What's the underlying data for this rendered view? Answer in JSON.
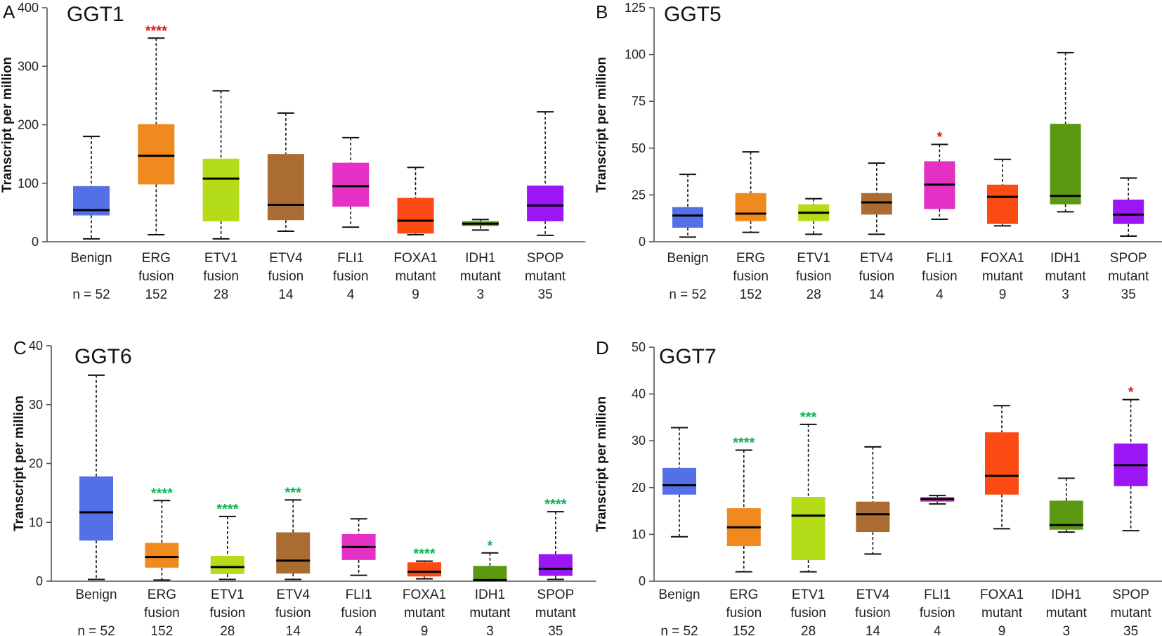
{
  "colors": {
    "Benign": "#5470E6",
    "ERG fusion": "#F08A1E",
    "ETV1 fusion": "#B5DC18",
    "ETV4 fusion": "#AA6C33",
    "FLI1 fusion": "#E430C4",
    "FOXA1 mutant": "#FB4A12",
    "IDH1 mutant": "#5C9913",
    "SPOP mutant": "#9A16F5",
    "star_red": "#E01818",
    "star_green": "#14B455"
  },
  "chart_data": [
    {
      "type": "boxplot",
      "panel": "A",
      "title": "GGT1",
      "ylabel": "Transcript per million",
      "ylim": [
        0,
        400
      ],
      "yticks": [
        0,
        100,
        200,
        300,
        400
      ],
      "categories": [
        {
          "name": "Benign",
          "line1": "Benign",
          "line2": "",
          "n": "n = 52",
          "min": 5,
          "q1": 45,
          "median": 54,
          "q3": 95,
          "max": 180,
          "stars": "",
          "star_color": ""
        },
        {
          "name": "ERG fusion",
          "line1": "ERG",
          "line2": "fusion",
          "n": "152",
          "min": 12,
          "q1": 98,
          "median": 147,
          "q3": 201,
          "max": 348,
          "stars": "****",
          "star_color": "red"
        },
        {
          "name": "ETV1 fusion",
          "line1": "ETV1",
          "line2": "fusion",
          "n": "28",
          "min": 5,
          "q1": 35,
          "median": 108,
          "q3": 142,
          "max": 258,
          "stars": "",
          "star_color": ""
        },
        {
          "name": "ETV4 fusion",
          "line1": "ETV4",
          "line2": "fusion",
          "n": "14",
          "min": 18,
          "q1": 37,
          "median": 63,
          "q3": 150,
          "max": 220,
          "stars": "",
          "star_color": ""
        },
        {
          "name": "FLI1 fusion",
          "line1": "FLI1",
          "line2": "fusion",
          "n": "4",
          "min": 25,
          "q1": 60,
          "median": 95,
          "q3": 135,
          "max": 178,
          "stars": "",
          "star_color": ""
        },
        {
          "name": "FOXA1 mutant",
          "line1": "FOXA1",
          "line2": "mutant",
          "n": "9",
          "min": 12,
          "q1": 14,
          "median": 36,
          "q3": 75,
          "max": 127,
          "stars": "",
          "star_color": ""
        },
        {
          "name": "IDH1 mutant",
          "line1": "IDH1",
          "line2": "mutant",
          "n": "3",
          "min": 20,
          "q1": 27,
          "median": 31,
          "q3": 35,
          "max": 38,
          "stars": "",
          "star_color": ""
        },
        {
          "name": "SPOP mutant",
          "line1": "SPOP",
          "line2": "mutant",
          "n": "35",
          "min": 11,
          "q1": 35,
          "median": 62,
          "q3": 96,
          "max": 222,
          "stars": "",
          "star_color": ""
        }
      ]
    },
    {
      "type": "boxplot",
      "panel": "B",
      "title": "GGT5",
      "ylabel": "Transcript per million",
      "ylim": [
        0,
        125
      ],
      "yticks": [
        0,
        25,
        50,
        75,
        100,
        125
      ],
      "categories": [
        {
          "name": "Benign",
          "line1": "Benign",
          "line2": "",
          "n": "n = 52",
          "min": 2.5,
          "q1": 7.5,
          "median": 14,
          "q3": 18.5,
          "max": 36,
          "stars": "",
          "star_color": ""
        },
        {
          "name": "ERG fusion",
          "line1": "ERG",
          "line2": "fusion",
          "n": "152",
          "min": 5,
          "q1": 11,
          "median": 15,
          "q3": 26,
          "max": 48,
          "stars": "",
          "star_color": ""
        },
        {
          "name": "ETV1 fusion",
          "line1": "ETV1",
          "line2": "fusion",
          "n": "28",
          "min": 4,
          "q1": 11,
          "median": 15.5,
          "q3": 20,
          "max": 23,
          "stars": "",
          "star_color": ""
        },
        {
          "name": "ETV4 fusion",
          "line1": "ETV4",
          "line2": "fusion",
          "n": "14",
          "min": 4,
          "q1": 14.5,
          "median": 21,
          "q3": 26,
          "max": 42,
          "stars": "",
          "star_color": ""
        },
        {
          "name": "FLI1 fusion",
          "line1": "FLI1",
          "line2": "fusion",
          "n": "4",
          "min": 12,
          "q1": 17.5,
          "median": 30.5,
          "q3": 43,
          "max": 52,
          "stars": "*",
          "star_color": "red"
        },
        {
          "name": "FOXA1 mutant",
          "line1": "FOXA1",
          "line2": "mutant",
          "n": "9",
          "min": 8.5,
          "q1": 9.5,
          "median": 24,
          "q3": 30.5,
          "max": 44,
          "stars": "",
          "star_color": ""
        },
        {
          "name": "IDH1 mutant",
          "line1": "IDH1",
          "line2": "mutant",
          "n": "3",
          "min": 16,
          "q1": 20,
          "median": 24.5,
          "q3": 63,
          "max": 101,
          "stars": "",
          "star_color": ""
        },
        {
          "name": "SPOP mutant",
          "line1": "SPOP",
          "line2": "mutant",
          "n": "35",
          "min": 3,
          "q1": 9.5,
          "median": 14.5,
          "q3": 22.5,
          "max": 34,
          "stars": "",
          "star_color": ""
        }
      ]
    },
    {
      "type": "boxplot",
      "panel": "C",
      "title": "GGT6",
      "ylabel": "Transcript per million",
      "ylim": [
        0,
        40
      ],
      "yticks": [
        0,
        10,
        20,
        30,
        40
      ],
      "categories": [
        {
          "name": "Benign",
          "line1": "Benign",
          "line2": "",
          "n": "n = 52",
          "min": 0.3,
          "q1": 6.9,
          "median": 11.7,
          "q3": 17.8,
          "max": 35,
          "stars": "",
          "star_color": ""
        },
        {
          "name": "ERG fusion",
          "line1": "ERG",
          "line2": "fusion",
          "n": "152",
          "min": 0.2,
          "q1": 2.3,
          "median": 4.1,
          "q3": 6.5,
          "max": 13.7,
          "stars": "****",
          "star_color": "green"
        },
        {
          "name": "ETV1 fusion",
          "line1": "ETV1",
          "line2": "fusion",
          "n": "28",
          "min": 0.3,
          "q1": 1.2,
          "median": 2.4,
          "q3": 4.3,
          "max": 11,
          "stars": "****",
          "star_color": "green"
        },
        {
          "name": "ETV4 fusion",
          "line1": "ETV4",
          "line2": "fusion",
          "n": "14",
          "min": 0.3,
          "q1": 1.3,
          "median": 3.5,
          "q3": 8.3,
          "max": 13.8,
          "stars": "***",
          "star_color": "green"
        },
        {
          "name": "FLI1 fusion",
          "line1": "FLI1",
          "line2": "fusion",
          "n": "4",
          "min": 1,
          "q1": 3.6,
          "median": 5.8,
          "q3": 8,
          "max": 10.6,
          "stars": "",
          "star_color": ""
        },
        {
          "name": "FOXA1 mutant",
          "line1": "FOXA1",
          "line2": "mutant",
          "n": "9",
          "min": 0.4,
          "q1": 0.8,
          "median": 1.6,
          "q3": 3.2,
          "max": 3.4,
          "stars": "****",
          "star_color": "green"
        },
        {
          "name": "IDH1 mutant",
          "line1": "IDH1",
          "line2": "mutant",
          "n": "3",
          "min": 0.1,
          "q1": 0.1,
          "median": 0.2,
          "q3": 2.6,
          "max": 4.8,
          "stars": "*",
          "star_color": "green"
        },
        {
          "name": "SPOP mutant",
          "line1": "SPOP",
          "line2": "mutant",
          "n": "35",
          "min": 0.3,
          "q1": 0.9,
          "median": 2.1,
          "q3": 4.6,
          "max": 11.8,
          "stars": "****",
          "star_color": "green"
        }
      ]
    },
    {
      "type": "boxplot",
      "panel": "D",
      "title": "GGT7",
      "ylabel": "Transcript per million",
      "ylim": [
        0,
        50
      ],
      "yticks": [
        0,
        10,
        20,
        30,
        40,
        50
      ],
      "categories": [
        {
          "name": "Benign",
          "line1": "Benign",
          "line2": "",
          "n": "n = 52",
          "min": 9.5,
          "q1": 18.5,
          "median": 20.5,
          "q3": 24.2,
          "max": 32.8,
          "stars": "",
          "star_color": ""
        },
        {
          "name": "ERG fusion",
          "line1": "ERG",
          "line2": "fusion",
          "n": "152",
          "min": 2,
          "q1": 7.5,
          "median": 11.5,
          "q3": 15.6,
          "max": 28,
          "stars": "****",
          "star_color": "green"
        },
        {
          "name": "ETV1 fusion",
          "line1": "ETV1",
          "line2": "fusion",
          "n": "28",
          "min": 2,
          "q1": 4.5,
          "median": 14,
          "q3": 18,
          "max": 33.5,
          "stars": "***",
          "star_color": "green"
        },
        {
          "name": "ETV4 fusion",
          "line1": "ETV4",
          "line2": "fusion",
          "n": "14",
          "min": 5.8,
          "q1": 10.5,
          "median": 14.3,
          "q3": 17,
          "max": 28.7,
          "stars": "",
          "star_color": ""
        },
        {
          "name": "FLI1 fusion",
          "line1": "FLI1",
          "line2": "fusion",
          "n": "4",
          "min": 16.5,
          "q1": 17,
          "median": 17.5,
          "q3": 18,
          "max": 18.3,
          "stars": "",
          "star_color": ""
        },
        {
          "name": "FOXA1 mutant",
          "line1": "FOXA1",
          "line2": "mutant",
          "n": "9",
          "min": 11.2,
          "q1": 18.5,
          "median": 22.5,
          "q3": 31.8,
          "max": 37.5,
          "stars": "",
          "star_color": ""
        },
        {
          "name": "IDH1 mutant",
          "line1": "IDH1",
          "line2": "mutant",
          "n": "3",
          "min": 10.5,
          "q1": 11,
          "median": 12,
          "q3": 17.2,
          "max": 22,
          "stars": "",
          "star_color": ""
        },
        {
          "name": "SPOP mutant",
          "line1": "SPOP",
          "line2": "mutant",
          "n": "35",
          "min": 10.8,
          "q1": 20.3,
          "median": 24.8,
          "q3": 29.4,
          "max": 38.8,
          "stars": "*",
          "star_color": "red"
        }
      ]
    }
  ]
}
